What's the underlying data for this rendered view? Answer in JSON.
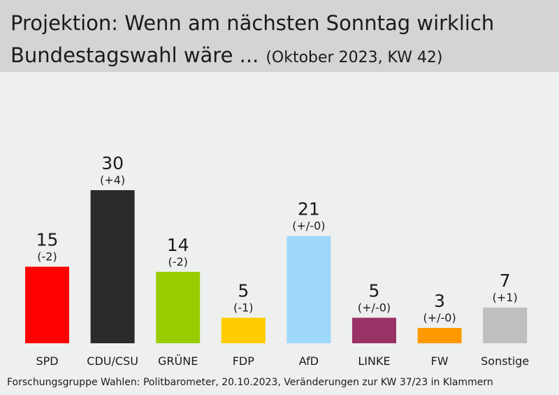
{
  "header": {
    "title_line1": "Projektion: Wenn am nächsten Sonntag wirklich",
    "title_line2": "Bundestagswahl wäre ...",
    "subtitle": "(Oktober 2023, KW 42)"
  },
  "footer": {
    "source": "Forschungsgruppe Wahlen: Politbarometer, 20.10.2023, Veränderungen zur KW 37/23 in Klammern"
  },
  "chart_data": {
    "type": "bar",
    "title": "Projektion: Wenn am nächsten Sonntag wirklich Bundestagswahl wäre ... (Oktober 2023, KW 42)",
    "categories": [
      "SPD",
      "CDU/CSU",
      "GRÜNE",
      "FDP",
      "AfD",
      "LINKE",
      "FW",
      "Sonstige"
    ],
    "values": [
      15,
      30,
      14,
      5,
      21,
      5,
      3,
      7
    ],
    "value_labels": [
      "15",
      "30",
      "14",
      "5",
      "21",
      "5",
      "3",
      "7"
    ],
    "changes": [
      "(-2)",
      "(+4)",
      "(-2)",
      "(-1)",
      "(+/-0)",
      "(+/-0)",
      "(+/-0)",
      "(+1)"
    ],
    "colors": [
      "#fe0000",
      "#2b2b2b",
      "#9acd00",
      "#ffcc00",
      "#9fd8fd",
      "#993366",
      "#fe9900",
      "#bfbfbf"
    ],
    "ylim": [
      0,
      30
    ],
    "grid": false,
    "legend": "none",
    "xlabel": "",
    "ylabel": ""
  }
}
